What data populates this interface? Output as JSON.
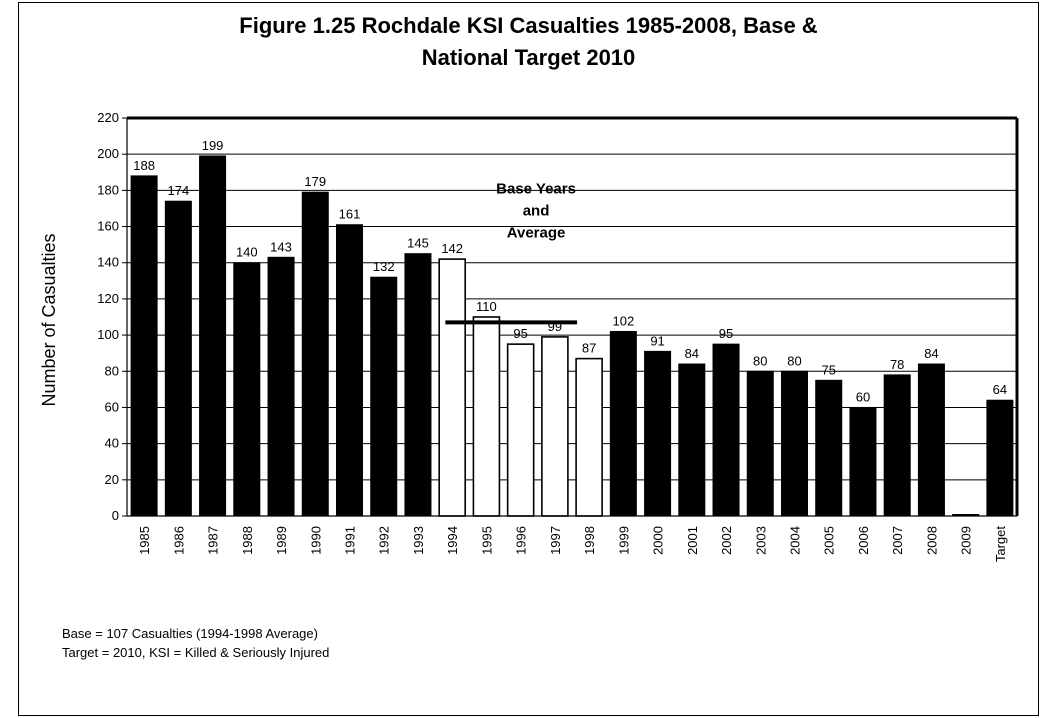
{
  "chart_data": {
    "type": "bar",
    "title_lines": [
      "Figure 1.25 Rochdale KSI Casualties 1985-2008, Base &",
      "National Target 2010"
    ],
    "ylabel": "Number of Casualties",
    "xlabel": "",
    "ylim": [
      0,
      220
    ],
    "yticks": [
      0,
      20,
      40,
      60,
      80,
      100,
      120,
      140,
      160,
      180,
      200,
      220
    ],
    "grid": true,
    "categories": [
      "1985",
      "1986",
      "1987",
      "1988",
      "1989",
      "1990",
      "1991",
      "1992",
      "1993",
      "1994",
      "1995",
      "1996",
      "1997",
      "1998",
      "1999",
      "2000",
      "2001",
      "2002",
      "2003",
      "2004",
      "2005",
      "2006",
      "2007",
      "2008",
      "2009",
      "Target"
    ],
    "values": [
      188,
      174,
      199,
      140,
      143,
      179,
      161,
      132,
      145,
      142,
      110,
      95,
      99,
      87,
      102,
      91,
      84,
      95,
      80,
      80,
      75,
      60,
      78,
      84,
      0,
      64
    ],
    "value_labels": [
      "188",
      "174",
      "199",
      "140",
      "143",
      "179",
      "161",
      "132",
      "145",
      "142",
      "110",
      "95",
      "99",
      "87",
      "102",
      "91",
      "84",
      "95",
      "80",
      "80",
      "75",
      "60",
      "78",
      "84",
      "",
      "64"
    ],
    "base_years": [
      "1994",
      "1995",
      "1996",
      "1997",
      "1998"
    ],
    "bar_fill": "#000000",
    "base_bar_fill": "#ffffff",
    "base_line": {
      "value": 107,
      "from": "1994",
      "to": "1997"
    },
    "annotation_lines": [
      "Base Years",
      "and",
      "Average"
    ]
  },
  "footnotes": [
    "Base = 107 Casualties (1994-1998 Average)",
    "Target = 2010, KSI = Killed & Seriously Injured"
  ]
}
